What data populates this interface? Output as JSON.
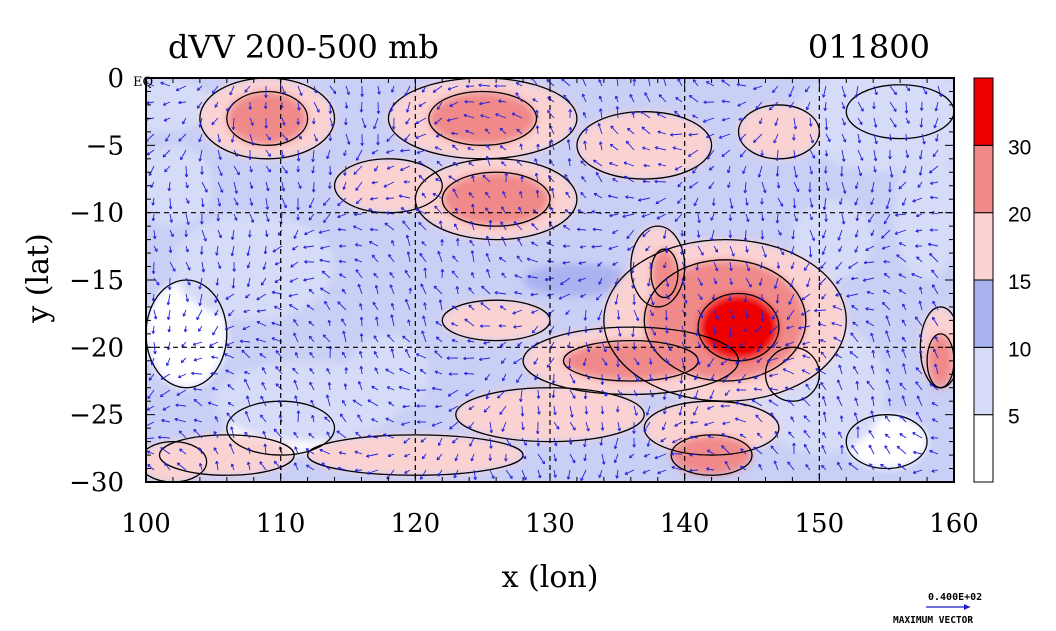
{
  "chart_data": {
    "type": "heatmap",
    "title": "dVV 200-500 mb",
    "time_label": "011800",
    "xlabel": "x (lon)",
    "ylabel": "y (lat)",
    "x_ticks": [
      "100",
      "110",
      "120",
      "130",
      "140",
      "150",
      "160"
    ],
    "y_ticks": [
      "0",
      "−5",
      "−10",
      "−15",
      "−20",
      "−25",
      "−30"
    ],
    "xlim": [
      100,
      160
    ],
    "ylim": [
      -30,
      0
    ],
    "grid": true,
    "eq_label": "EQ",
    "colorbar": {
      "levels": [
        5,
        10,
        15,
        20,
        30
      ],
      "labels": [
        "5",
        "10",
        "15",
        "20",
        "30"
      ],
      "colors": [
        "#ffffff",
        "#d6dbf7",
        "#aab2f0",
        "#fbd2d2",
        "#f08a8a",
        "#ee0000"
      ]
    },
    "regions": [
      {
        "level": 1,
        "lon": 101,
        "lat": -2,
        "rx": 4,
        "ry": 2
      },
      {
        "level": 1,
        "lon": 102,
        "lat": -8,
        "rx": 3,
        "ry": 3
      },
      {
        "level": 1,
        "lon": 108,
        "lat": -14,
        "rx": 6,
        "ry": 4
      },
      {
        "level": 1,
        "lon": 112,
        "lat": -24,
        "rx": 7,
        "ry": 3
      },
      {
        "level": 1,
        "lon": 118,
        "lat": -22,
        "rx": 3,
        "ry": 3
      },
      {
        "level": 1,
        "lon": 155,
        "lat": -3,
        "rx": 7,
        "ry": 4
      },
      {
        "level": 1,
        "lon": 151,
        "lat": -12,
        "rx": 3,
        "ry": 3
      },
      {
        "level": 1,
        "lon": 150,
        "lat": -23,
        "rx": 5,
        "ry": 5
      },
      {
        "level": 1,
        "lon": 158,
        "lat": -10,
        "rx": 2.5,
        "ry": 5
      },
      {
        "level": 0,
        "lon": 103,
        "lat": -19,
        "rx": 3,
        "ry": 4
      },
      {
        "level": 0,
        "lon": 110,
        "lat": -26,
        "rx": 4,
        "ry": 2
      },
      {
        "level": 0,
        "lon": 156,
        "lat": -2.5,
        "rx": 4,
        "ry": 2
      },
      {
        "level": 0,
        "lon": 148,
        "lat": -22,
        "rx": 2,
        "ry": 2
      },
      {
        "level": 0,
        "lon": 155,
        "lat": -27,
        "rx": 3,
        "ry": 2
      },
      {
        "level": 3,
        "lon": 109,
        "lat": -3,
        "rx": 5,
        "ry": 3
      },
      {
        "level": 3,
        "lon": 125,
        "lat": -3,
        "rx": 7,
        "ry": 3
      },
      {
        "level": 3,
        "lon": 118,
        "lat": -8,
        "rx": 4,
        "ry": 2
      },
      {
        "level": 3,
        "lon": 126,
        "lat": -9,
        "rx": 6,
        "ry": 3
      },
      {
        "level": 3,
        "lon": 137,
        "lat": -5,
        "rx": 5,
        "ry": 2.5
      },
      {
        "level": 3,
        "lon": 147,
        "lat": -4,
        "rx": 3,
        "ry": 2
      },
      {
        "level": 3,
        "lon": 138,
        "lat": -14,
        "rx": 2,
        "ry": 3
      },
      {
        "level": 3,
        "lon": 126,
        "lat": -18,
        "rx": 4,
        "ry": 1.5
      },
      {
        "level": 3,
        "lon": 143,
        "lat": -18,
        "rx": 9,
        "ry": 6
      },
      {
        "level": 3,
        "lon": 136,
        "lat": -21,
        "rx": 8,
        "ry": 2.5
      },
      {
        "level": 3,
        "lon": 130,
        "lat": -25,
        "rx": 7,
        "ry": 2
      },
      {
        "level": 3,
        "lon": 142,
        "lat": -26,
        "rx": 5,
        "ry": 2
      },
      {
        "level": 3,
        "lon": 120,
        "lat": -28,
        "rx": 8,
        "ry": 1.5
      },
      {
        "level": 3,
        "lon": 106,
        "lat": -28,
        "rx": 5,
        "ry": 1.5
      },
      {
        "level": 3,
        "lon": 102,
        "lat": -28.5,
        "rx": 2.5,
        "ry": 1.5
      },
      {
        "level": 3,
        "lon": 159,
        "lat": -20,
        "rx": 1.5,
        "ry": 3
      },
      {
        "level": 4,
        "lon": 109,
        "lat": -3,
        "rx": 3,
        "ry": 2
      },
      {
        "level": 4,
        "lon": 125,
        "lat": -3,
        "rx": 4,
        "ry": 2
      },
      {
        "level": 4,
        "lon": 126,
        "lat": -9,
        "rx": 4,
        "ry": 2
      },
      {
        "level": 4,
        "lon": 143,
        "lat": -18,
        "rx": 6,
        "ry": 4.5
      },
      {
        "level": 4,
        "lon": 136,
        "lat": -21,
        "rx": 5,
        "ry": 1.5
      },
      {
        "level": 4,
        "lon": 142,
        "lat": -28,
        "rx": 3,
        "ry": 1.5
      },
      {
        "level": 4,
        "lon": 138.5,
        "lat": -14.5,
        "rx": 1,
        "ry": 1.8
      },
      {
        "level": 4,
        "lon": 159,
        "lat": -21,
        "rx": 1,
        "ry": 2
      },
      {
        "level": 5,
        "lon": 144,
        "lat": -18.5,
        "rx": 3,
        "ry": 2.5
      },
      {
        "level": 2,
        "lon": 132,
        "lat": -15,
        "rx": 4,
        "ry": 1.2
      }
    ],
    "vector_legend": {
      "value": "0.400E+02",
      "label": "MAXIMUM VECTOR"
    }
  }
}
